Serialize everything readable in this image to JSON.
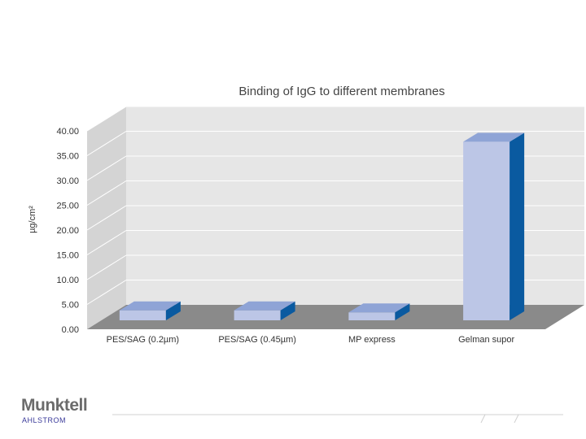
{
  "chart_data": {
    "type": "bar",
    "title": "Binding of IgG to different membranes",
    "ylabel": "µg/cm²",
    "xlabel": "",
    "categories": [
      "PES/SAG (0.2µm)",
      "PES/SAG (0.45µm)",
      "MP express",
      "Gelman supor"
    ],
    "values": [
      2.0,
      2.0,
      1.6,
      36.0
    ],
    "ylim": [
      0,
      40
    ],
    "yticks": [
      "0.00",
      "5.00",
      "10.00",
      "15.00",
      "20.00",
      "25.00",
      "30.00",
      "35.00",
      "40.00"
    ],
    "grid": true,
    "style": "3d",
    "colors": {
      "front": "#bcc6e6",
      "top": "#8fa4d6",
      "side": "#0a5aa0",
      "wall": "#e6e6e6",
      "floor": "#8a8a8a",
      "grid": "#ffffff"
    }
  },
  "logo": {
    "name": "Munktell",
    "sub": "AHLSTROM"
  }
}
